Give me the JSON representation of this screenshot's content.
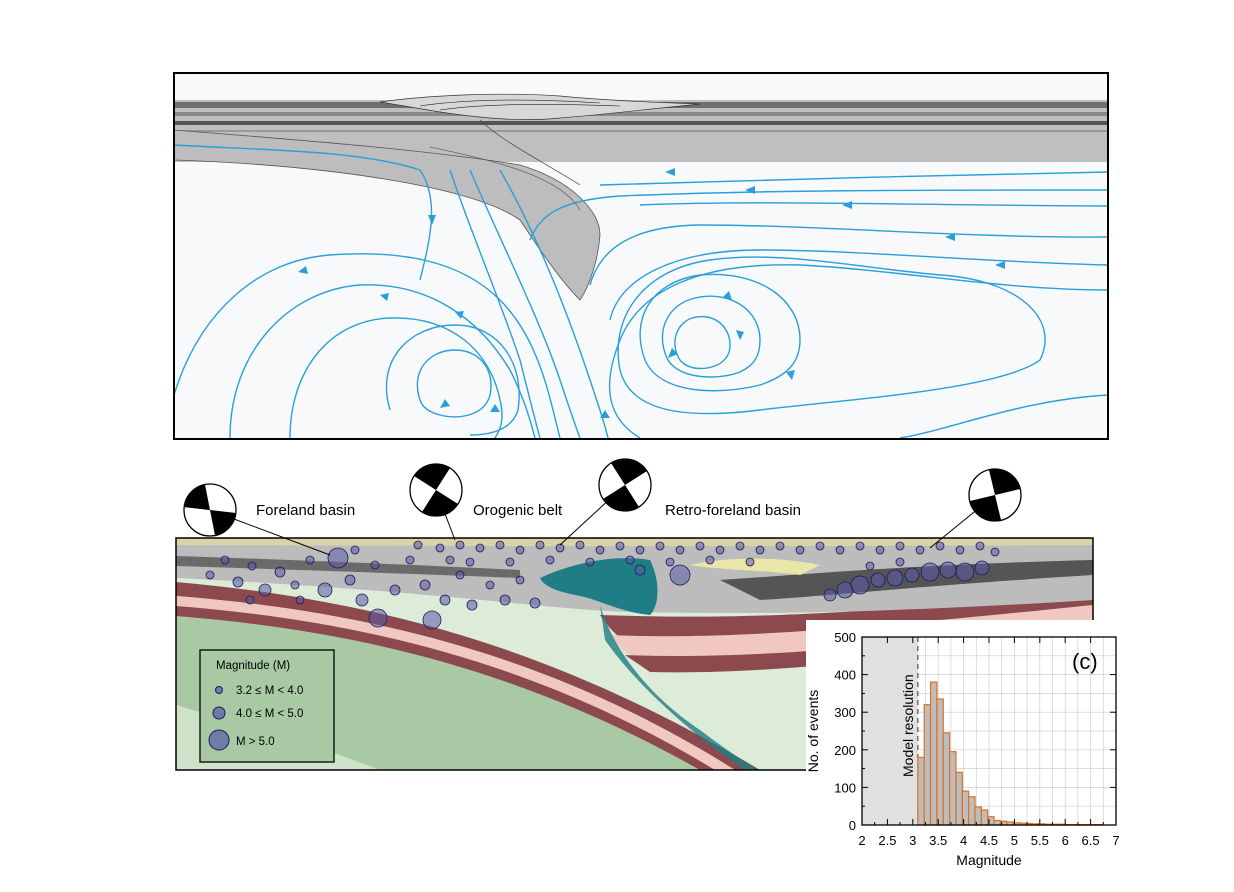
{
  "section": {
    "labels": {
      "foreland": "Foreland basin",
      "orogenic": "Orogenic belt",
      "retro": "Retro-foreland basin"
    },
    "legend": {
      "title": "Magnitude (M)",
      "small": "3.2 ≤ M < 4.0",
      "medium": "4.0 ≤ M < 5.0",
      "large": "M > 5.0"
    }
  },
  "colors": {
    "flowline": "#2a9fd8",
    "plate_gray": "#bdbdbd",
    "mantle_light": "#dcecd8",
    "mantle_green": "#a9c9a4",
    "crust_red": "#8c4a4e",
    "crust_pink": "#f0c8c0",
    "teal": "#1f7d86",
    "quake": "#5a5aa8",
    "bar_fill": "#bdbdbd",
    "bar_edge": "#e07020"
  },
  "chart_data": {
    "type": "bar",
    "panel_label": "(c)",
    "xlabel": "Magnitude",
    "ylabel": "No. of events",
    "annotation": "Model resolution",
    "resolution_limit": 3.1,
    "xlim": [
      2,
      7
    ],
    "ylim": [
      0,
      500
    ],
    "xticks": [
      "2",
      "2.5",
      "3",
      "3.5",
      "4",
      "4.5",
      "5",
      "5.5",
      "6",
      "6.5",
      "7"
    ],
    "yticks": [
      "0",
      "100",
      "200",
      "300",
      "400",
      "500"
    ],
    "bin_width": 0.125,
    "bin_starts": [
      3.1,
      3.225,
      3.35,
      3.475,
      3.6,
      3.725,
      3.85,
      3.975,
      4.1,
      4.225,
      4.35,
      4.475,
      4.6,
      4.725,
      4.85,
      4.975,
      5.1,
      5.225,
      5.35,
      5.475,
      5.6,
      5.725,
      5.85,
      5.975,
      6.1,
      6.225,
      6.35,
      6.475,
      6.6
    ],
    "values": [
      180,
      320,
      380,
      335,
      245,
      195,
      140,
      90,
      75,
      48,
      40,
      22,
      12,
      10,
      8,
      6,
      5,
      4,
      3,
      3,
      2,
      2,
      2,
      1,
      1,
      1,
      1,
      1,
      1
    ]
  }
}
